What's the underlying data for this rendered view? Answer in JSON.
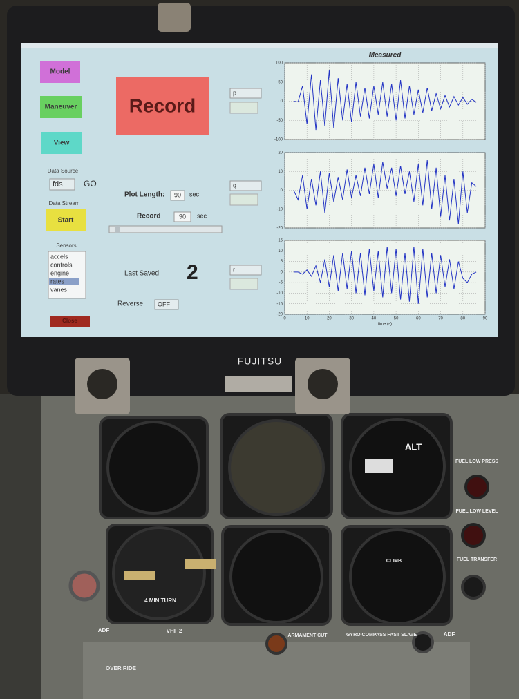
{
  "ui": {
    "buttons": {
      "model": "Model",
      "maneuver": "Maneuver",
      "view": "View",
      "record": "Record",
      "start": "Start",
      "close": "Close"
    },
    "data_source": {
      "label": "Data Source",
      "value": "fds",
      "go": "GO"
    },
    "data_stream": "Data Stream",
    "sensors": {
      "label": "Sensors",
      "items": [
        "accels",
        "controls",
        "engine",
        "rates",
        "vanes"
      ],
      "selected": 3
    },
    "plot_length": {
      "label": "Plot Length:",
      "value": 90,
      "unit": "sec"
    },
    "record": {
      "label": "Record",
      "value": 90,
      "unit": "sec"
    },
    "channels": [
      "p",
      "q",
      "r"
    ],
    "last_saved": {
      "label": "Last Saved",
      "value": 2
    },
    "reverse": {
      "label": "Reverse",
      "value": "OFF"
    }
  },
  "panel": {
    "brand": "FUJITSU",
    "alt": "ALT",
    "climb": "CLIMB",
    "turn": "4 MIN TURN",
    "adf_left": "ADF",
    "vhf": "VHF 2",
    "armament": "ARMAMENT CUT",
    "gyro": "GYRO COMPASS FAST SLAVE",
    "adf_right": "ADF",
    "override": "OVER RIDE",
    "fuel_press": "FUEL LOW PRESS",
    "fuel_level": "FUEL LOW LEVEL",
    "fuel_transfer": "FUEL TRANSFER"
  },
  "chart_data": [
    {
      "type": "line",
      "title": "Measured",
      "color": "#2233c4",
      "grid": true,
      "show_xtick_labels": false,
      "x": [
        4,
        6,
        8,
        10,
        12,
        14,
        16,
        18,
        20,
        22,
        24,
        26,
        28,
        30,
        32,
        34,
        36,
        38,
        40,
        42,
        44,
        46,
        48,
        50,
        52,
        54,
        56,
        58,
        60,
        62,
        64,
        66,
        68,
        70,
        72,
        74,
        76,
        78,
        80,
        82,
        84,
        86
      ],
      "values": [
        0,
        -2,
        40,
        -60,
        70,
        -75,
        55,
        -65,
        80,
        -70,
        60,
        -50,
        45,
        -55,
        50,
        -40,
        35,
        -45,
        40,
        -35,
        50,
        -40,
        45,
        -50,
        55,
        -45,
        40,
        -35,
        30,
        -30,
        35,
        -25,
        20,
        -20,
        15,
        -15,
        12,
        -10,
        10,
        -8,
        5,
        -3
      ],
      "xlim": [
        0,
        90
      ],
      "xticks": [
        0,
        10,
        20,
        30,
        40,
        50,
        60,
        70,
        80,
        90
      ],
      "ylim": [
        -100,
        100
      ],
      "yticks": [
        100,
        50,
        0,
        -50,
        -100
      ]
    },
    {
      "type": "line",
      "color": "#2233c4",
      "grid": true,
      "show_xtick_labels": false,
      "x": [
        4,
        6,
        8,
        10,
        12,
        14,
        16,
        18,
        20,
        22,
        24,
        26,
        28,
        30,
        32,
        34,
        36,
        38,
        40,
        42,
        44,
        46,
        48,
        50,
        52,
        54,
        56,
        58,
        60,
        62,
        64,
        66,
        68,
        70,
        72,
        74,
        76,
        78,
        80,
        82,
        84,
        86
      ],
      "values": [
        0,
        -5,
        8,
        -10,
        6,
        -8,
        10,
        -12,
        9,
        -6,
        7,
        -5,
        11,
        -4,
        8,
        -3,
        12,
        -2,
        14,
        -4,
        15,
        1,
        12,
        -3,
        13,
        -2,
        10,
        -6,
        14,
        -8,
        16,
        -10,
        12,
        -14,
        8,
        -16,
        6,
        -18,
        10,
        -12,
        4,
        2
      ],
      "xlim": [
        0,
        90
      ],
      "xticks": [
        0,
        10,
        20,
        30,
        40,
        50,
        60,
        70,
        80,
        90
      ],
      "ylim": [
        -20,
        20
      ],
      "yticks": [
        20,
        10,
        0,
        -10,
        -20
      ]
    },
    {
      "type": "line",
      "color": "#2233c4",
      "grid": true,
      "show_xtick_labels": true,
      "xlabel": "time (s)",
      "x": [
        4,
        6,
        8,
        10,
        12,
        14,
        16,
        18,
        20,
        22,
        24,
        26,
        28,
        30,
        32,
        34,
        36,
        38,
        40,
        42,
        44,
        46,
        48,
        50,
        52,
        54,
        56,
        58,
        60,
        62,
        64,
        66,
        68,
        70,
        72,
        74,
        76,
        78,
        80,
        82,
        84,
        86
      ],
      "values": [
        0,
        0,
        -1,
        1,
        -2,
        3,
        -5,
        6,
        -7,
        8,
        -9,
        9,
        -8,
        10,
        -10,
        9,
        -11,
        11,
        -9,
        10,
        -12,
        12,
        -10,
        11,
        -13,
        9,
        -14,
        12,
        -15,
        11,
        -12,
        9,
        -10,
        8,
        -7,
        6,
        -8,
        5,
        -3,
        -5,
        -1,
        0
      ],
      "xlim": [
        0,
        90
      ],
      "xticks": [
        0,
        10,
        20,
        30,
        40,
        50,
        60,
        70,
        80,
        90
      ],
      "ylim": [
        -20,
        15
      ],
      "yticks": [
        15,
        10,
        5,
        0,
        -5,
        -10,
        -15,
        -20
      ]
    }
  ]
}
